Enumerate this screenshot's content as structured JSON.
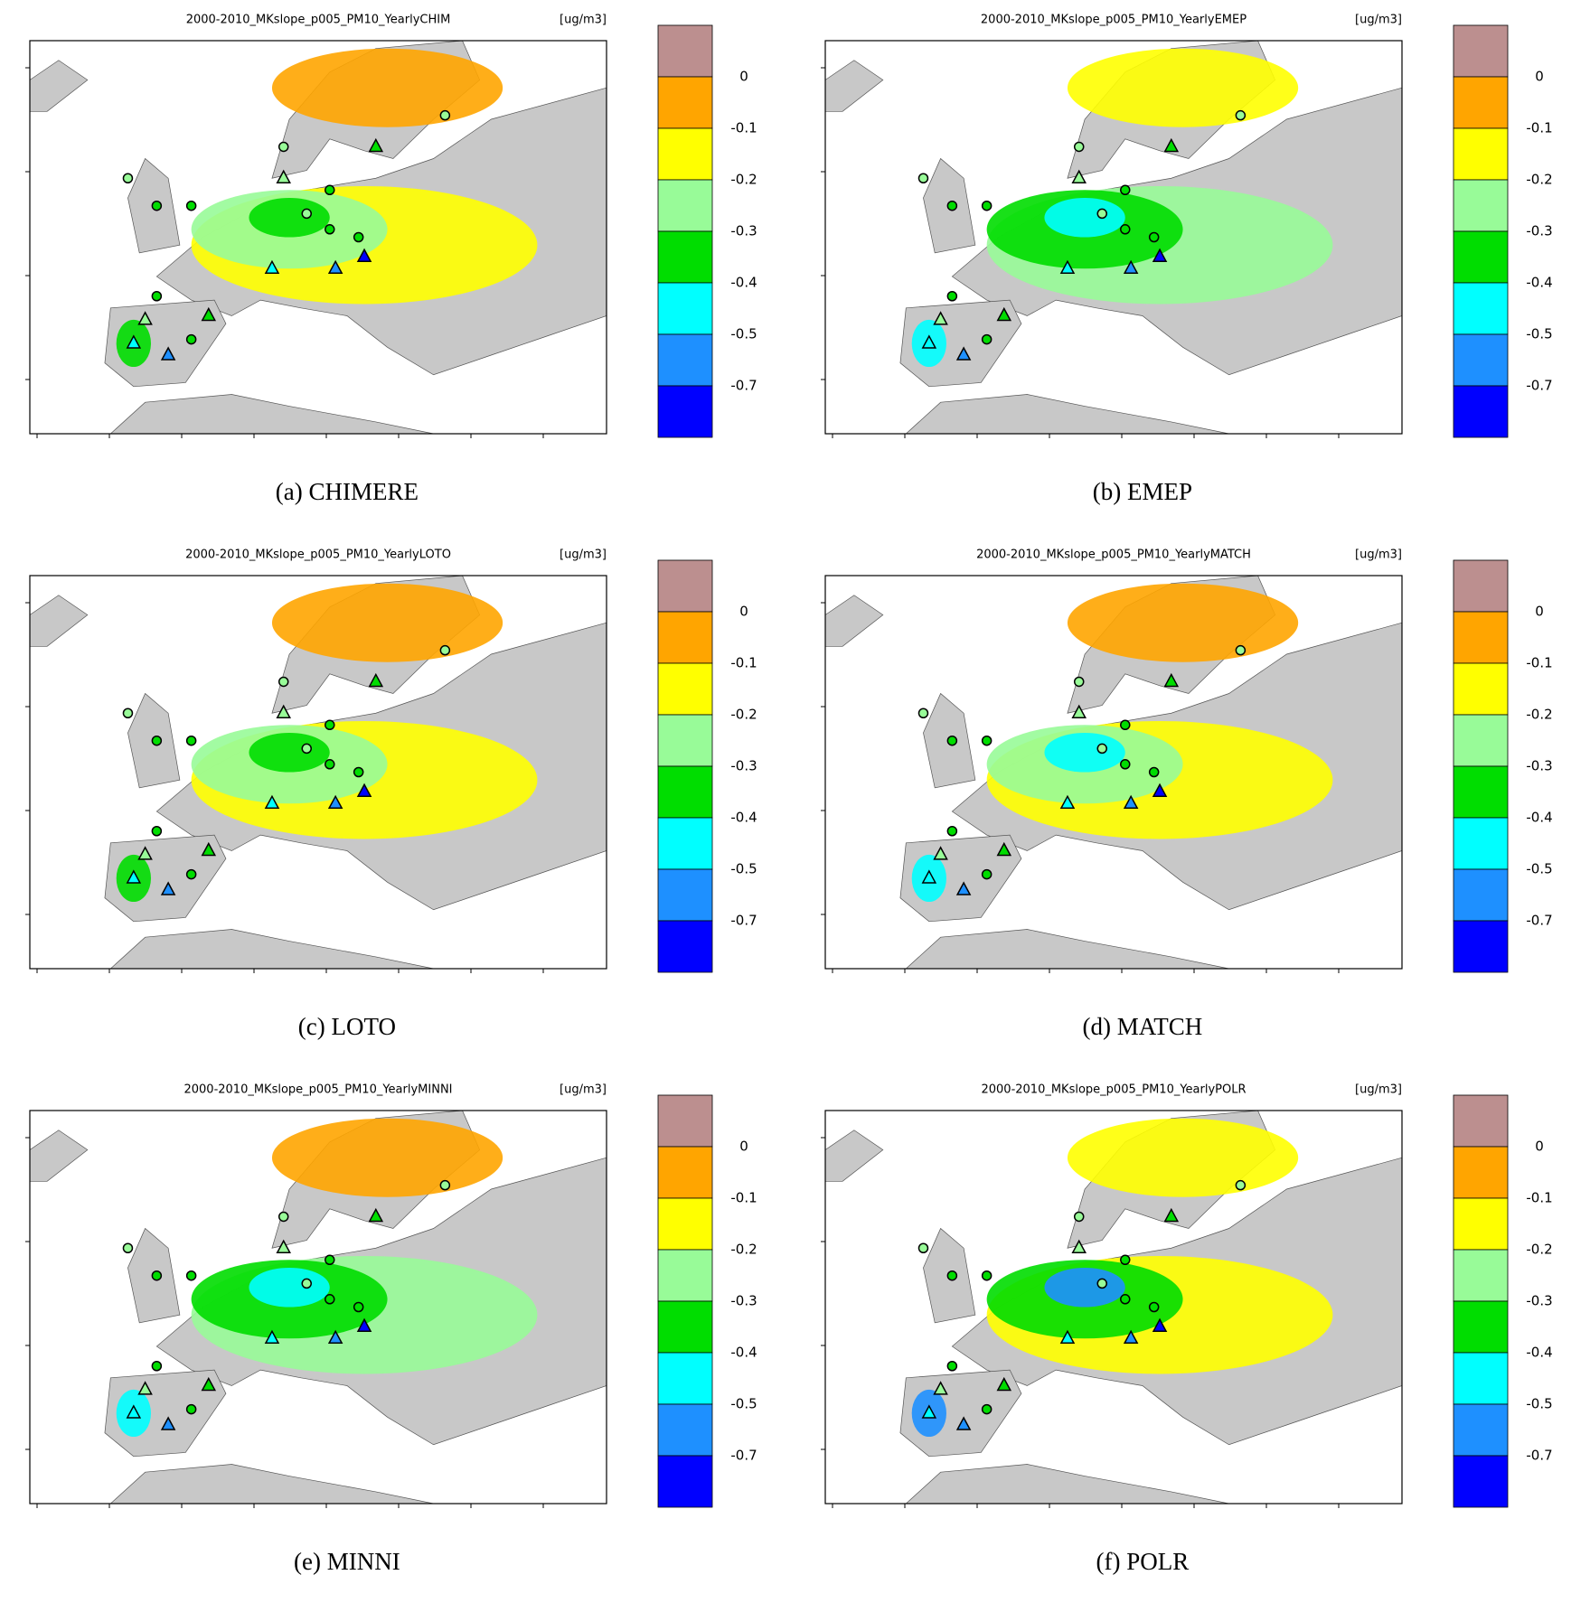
{
  "colorbar": {
    "labels": [
      0,
      -0.1,
      -0.2,
      -0.3,
      -0.4,
      -0.5,
      -0.7
    ],
    "colors": [
      "#bc8f8f",
      "#ffa500",
      "#ffff00",
      "#98fb98",
      "#00dd00",
      "#00ffff",
      "#1e90ff",
      "#0000ff"
    ]
  },
  "panels": [
    {
      "title": "2000-2010_MKslope_p005_PM10_YearlyCHIM",
      "unit": "[ug/m3]",
      "caption": "(a)  CHIMERE"
    },
    {
      "title": "2000-2010_MKslope_p005_PM10_YearlyEMEP",
      "unit": "[ug/m3]",
      "caption": "(b)  EMEP"
    },
    {
      "title": "2000-2010_MKslope_p005_PM10_YearlyLOTO",
      "unit": "[ug/m3]",
      "caption": "(c)  LOTO"
    },
    {
      "title": "2000-2010_MKslope_p005_PM10_YearlyMATCH",
      "unit": "[ug/m3]",
      "caption": "(d)  MATCH"
    },
    {
      "title": "2000-2010_MKslope_p005_PM10_YearlyMINNI",
      "unit": "[ug/m3]",
      "caption": "(e)  MINNI"
    },
    {
      "title": "2000-2010_MKslope_p005_PM10_YearlyPOLR",
      "unit": "[ug/m3]",
      "caption": "(f)  POLR"
    }
  ]
}
